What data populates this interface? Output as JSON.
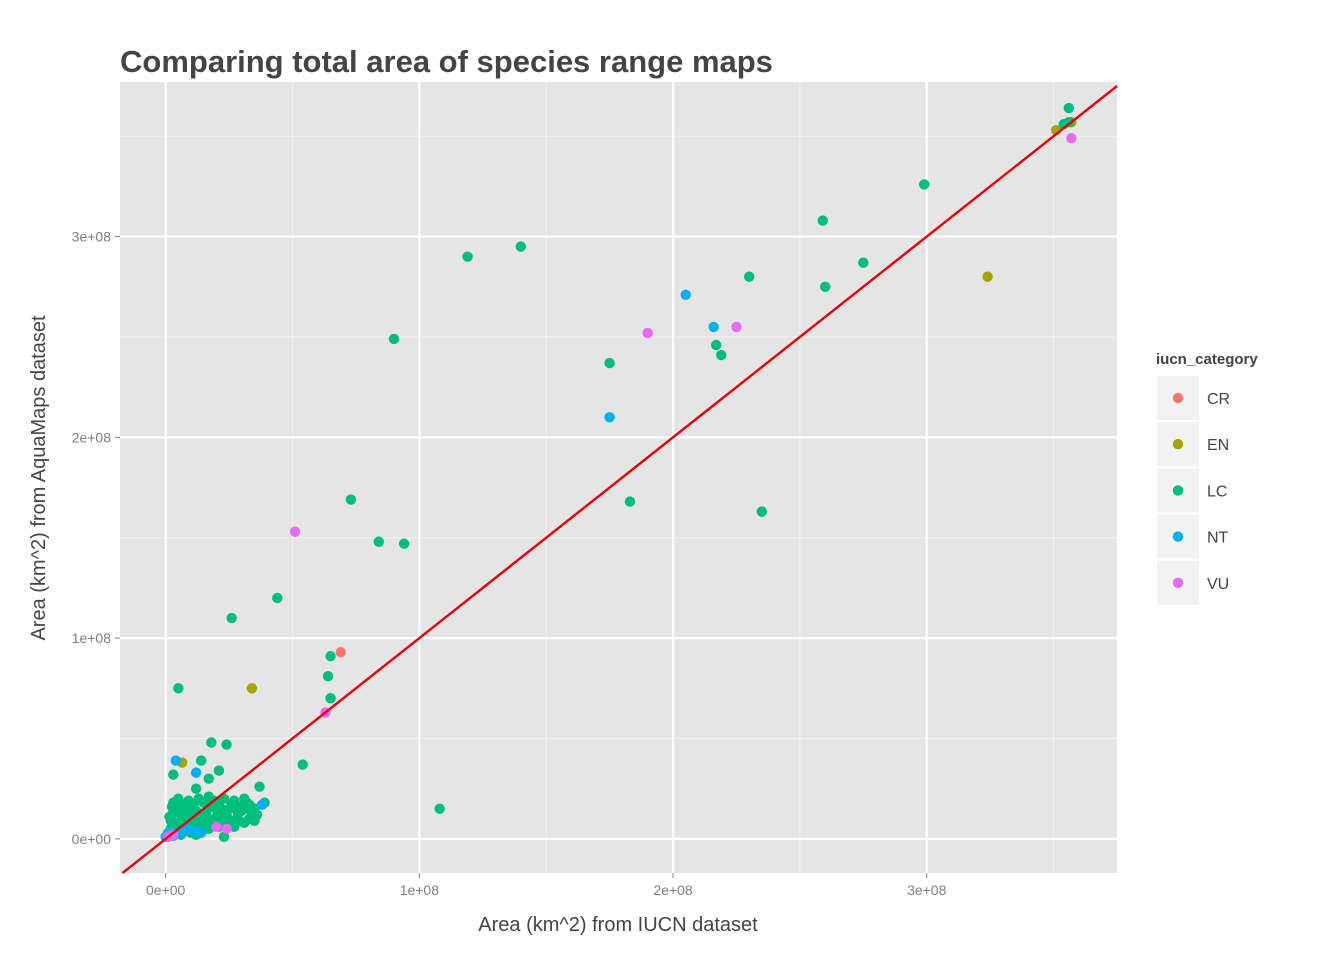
{
  "chart_data": {
    "type": "scatter",
    "title": "Comparing total area of species range maps",
    "xlabel": "Area (km^2) from IUCN dataset",
    "ylabel": "Area (km^2) from AquaMaps dataset",
    "xlim": [
      -18000000,
      375000000
    ],
    "ylim": [
      -17000000,
      377000000
    ],
    "x_ticks": [
      {
        "value": 0,
        "label": "0e+00"
      },
      {
        "value": 100000000,
        "label": "1e+08"
      },
      {
        "value": 200000000,
        "label": "2e+08"
      },
      {
        "value": 300000000,
        "label": "3e+08"
      }
    ],
    "y_ticks": [
      {
        "value": 0,
        "label": "0e+00"
      },
      {
        "value": 100000000,
        "label": "1e+08"
      },
      {
        "value": 200000000,
        "label": "2e+08"
      },
      {
        "value": 300000000,
        "label": "3e+08"
      }
    ],
    "grid": true,
    "reference_line": {
      "slope": 1,
      "intercept": 0,
      "color": "#e8000b"
    },
    "legend": {
      "title": "iucn_category",
      "position": "right",
      "entries": [
        {
          "label": "CR",
          "color": "#f8766d"
        },
        {
          "label": "EN",
          "color": "#a3a500"
        },
        {
          "label": "LC",
          "color": "#00bf7d"
        },
        {
          "label": "NT",
          "color": "#00b0f6"
        },
        {
          "label": "VU",
          "color": "#e76bf3"
        }
      ]
    },
    "series": [
      {
        "name": "CR",
        "color": "#f8766d",
        "points": [
          [
            69000000,
            93000000
          ]
        ]
      },
      {
        "name": "EN",
        "color": "#a3a500",
        "points": [
          [
            6500000,
            38000000
          ],
          [
            34000000,
            75000000
          ],
          [
            324000000,
            280000000
          ],
          [
            351000000,
            353000000
          ],
          [
            357000000,
            357000000
          ]
        ]
      },
      {
        "name": "LC",
        "color": "#00bf7d",
        "points": [
          [
            299000000,
            326000000
          ],
          [
            259000000,
            308000000
          ],
          [
            230000000,
            280000000
          ],
          [
            260000000,
            275000000
          ],
          [
            275000000,
            287000000
          ],
          [
            217000000,
            246000000
          ],
          [
            219000000,
            241000000
          ],
          [
            175000000,
            237000000
          ],
          [
            183000000,
            168000000
          ],
          [
            235000000,
            163000000
          ],
          [
            140000000,
            295000000
          ],
          [
            119000000,
            290000000
          ],
          [
            90000000,
            249000000
          ],
          [
            73000000,
            169000000
          ],
          [
            84000000,
            148000000
          ],
          [
            94000000,
            147000000
          ],
          [
            44000000,
            120000000
          ],
          [
            26000000,
            110000000
          ],
          [
            65000000,
            91000000
          ],
          [
            64000000,
            81000000
          ],
          [
            65000000,
            70000000
          ],
          [
            5000000,
            75000000
          ],
          [
            54000000,
            37000000
          ],
          [
            108000000,
            15000000
          ],
          [
            18000000,
            48000000
          ],
          [
            24000000,
            47000000
          ],
          [
            14000000,
            39000000
          ],
          [
            3000000,
            32000000
          ],
          [
            21000000,
            34000000
          ],
          [
            17000000,
            30000000
          ],
          [
            12000000,
            25000000
          ],
          [
            37000000,
            26000000
          ],
          [
            39000000,
            18000000
          ],
          [
            356000000,
            364000000
          ],
          [
            354000000,
            356000000
          ],
          [
            356000000,
            357000000
          ],
          [
            23000000,
            1000000
          ],
          [
            2000000,
            5000000
          ],
          [
            4000000,
            8000000
          ],
          [
            6000000,
            12000000
          ],
          [
            8000000,
            15000000
          ],
          [
            10000000,
            10000000
          ],
          [
            12000000,
            14000000
          ],
          [
            14000000,
            9000000
          ],
          [
            16000000,
            13000000
          ],
          [
            18000000,
            16000000
          ],
          [
            20000000,
            11000000
          ],
          [
            22000000,
            15000000
          ],
          [
            24000000,
            12000000
          ],
          [
            26000000,
            17000000
          ],
          [
            28000000,
            10000000
          ],
          [
            30000000,
            14000000
          ],
          [
            32000000,
            18000000
          ],
          [
            34000000,
            12000000
          ],
          [
            3000000,
            18000000
          ],
          [
            5000000,
            20000000
          ],
          [
            7000000,
            16000000
          ],
          [
            9000000,
            19000000
          ],
          [
            11000000,
            17000000
          ],
          [
            13000000,
            20000000
          ],
          [
            15000000,
            18000000
          ],
          [
            17000000,
            21000000
          ],
          [
            19000000,
            19000000
          ],
          [
            21000000,
            17000000
          ],
          [
            23000000,
            20000000
          ],
          [
            25000000,
            15000000
          ],
          [
            27000000,
            19000000
          ],
          [
            29000000,
            16000000
          ],
          [
            31000000,
            20000000
          ],
          [
            33000000,
            17000000
          ],
          [
            35000000,
            15000000
          ],
          [
            1000000,
            3000000
          ],
          [
            2000000,
            9000000
          ],
          [
            3000000,
            13000000
          ],
          [
            5000000,
            6000000
          ],
          [
            7000000,
            9000000
          ],
          [
            9000000,
            6000000
          ],
          [
            11000000,
            8000000
          ],
          [
            13000000,
            5000000
          ],
          [
            15000000,
            7000000
          ],
          [
            17000000,
            5000000
          ],
          [
            19000000,
            8000000
          ],
          [
            21000000,
            6000000
          ],
          [
            23000000,
            9000000
          ],
          [
            25000000,
            7000000
          ],
          [
            27000000,
            6000000
          ],
          [
            29000000,
            9000000
          ],
          [
            31000000,
            8000000
          ],
          [
            33000000,
            10000000
          ],
          [
            35000000,
            9000000
          ],
          [
            4000000,
            3000000
          ],
          [
            6000000,
            2000000
          ],
          [
            8000000,
            4000000
          ],
          [
            10000000,
            3000000
          ],
          [
            12000000,
            2000000
          ],
          [
            14000000,
            4000000
          ],
          [
            1500000,
            11000000
          ],
          [
            2500000,
            16000000
          ],
          [
            4500000,
            14000000
          ],
          [
            6500000,
            17000000
          ],
          [
            8500000,
            11000000
          ],
          [
            10500000,
            13000000
          ],
          [
            12500000,
            11000000
          ],
          [
            16500000,
            10000000
          ],
          [
            20500000,
            13000000
          ],
          [
            24500000,
            10000000
          ],
          [
            28500000,
            13000000
          ],
          [
            32500000,
            15000000
          ],
          [
            36000000,
            12000000
          ]
        ]
      },
      {
        "name": "NT",
        "color": "#00b0f6",
        "points": [
          [
            205000000,
            271000000
          ],
          [
            216000000,
            255000000
          ],
          [
            175000000,
            210000000
          ],
          [
            4000000,
            39000000
          ],
          [
            12000000,
            33000000
          ],
          [
            38000000,
            17000000
          ],
          [
            8000000,
            5000000
          ],
          [
            11000000,
            4000000
          ],
          [
            14000000,
            3000000
          ],
          [
            1000000,
            2000000
          ],
          [
            3000000,
            1500000
          ],
          [
            0,
            1000000
          ],
          [
            2000000,
            3000000
          ],
          [
            5000000,
            2500000
          ]
        ]
      },
      {
        "name": "VU",
        "color": "#e76bf3",
        "points": [
          [
            190000000,
            252000000
          ],
          [
            225000000,
            255000000
          ],
          [
            357000000,
            349000000
          ],
          [
            51000000,
            153000000
          ],
          [
            63000000,
            63000000
          ],
          [
            20000000,
            6000000
          ],
          [
            24000000,
            5000000
          ],
          [
            1000000,
            1000000
          ],
          [
            3000000,
            2000000
          ]
        ]
      }
    ]
  }
}
